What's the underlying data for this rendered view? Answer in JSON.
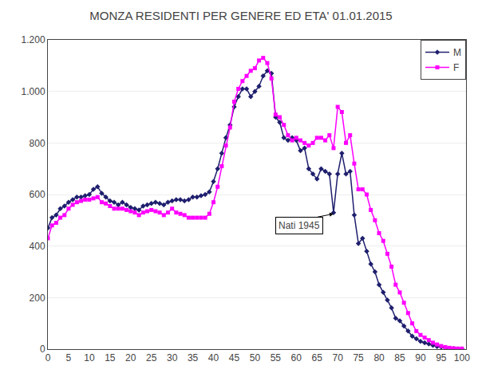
{
  "chart_data": {
    "type": "line",
    "title": "MONZA RESIDENTI PER GENERE ED ETA' 01.01.2015",
    "x": [
      0,
      1,
      2,
      3,
      4,
      5,
      6,
      7,
      8,
      9,
      10,
      11,
      12,
      13,
      14,
      15,
      16,
      17,
      18,
      19,
      20,
      21,
      22,
      23,
      24,
      25,
      26,
      27,
      28,
      29,
      30,
      31,
      32,
      33,
      34,
      35,
      36,
      37,
      38,
      39,
      40,
      41,
      42,
      43,
      44,
      45,
      46,
      47,
      48,
      49,
      50,
      51,
      52,
      53,
      54,
      55,
      56,
      57,
      58,
      59,
      60,
      61,
      62,
      63,
      64,
      65,
      66,
      67,
      68,
      69,
      70,
      71,
      72,
      73,
      74,
      75,
      76,
      77,
      78,
      79,
      80,
      81,
      82,
      83,
      84,
      85,
      86,
      87,
      88,
      89,
      90,
      91,
      92,
      93,
      94,
      95,
      96,
      97,
      98,
      99,
      100
    ],
    "series": [
      {
        "name": "M",
        "color": "#1f1f6e",
        "marker": "diamond",
        "values": [
          470,
          510,
          520,
          545,
          555,
          570,
          580,
          590,
          590,
          595,
          600,
          620,
          630,
          605,
          590,
          575,
          570,
          560,
          570,
          560,
          550,
          545,
          540,
          555,
          560,
          565,
          570,
          565,
          560,
          570,
          575,
          580,
          580,
          575,
          580,
          590,
          590,
          595,
          600,
          610,
          650,
          700,
          760,
          820,
          870,
          940,
          980,
          1010,
          1010,
          980,
          1000,
          1020,
          1060,
          1080,
          1070,
          900,
          880,
          820,
          810,
          820,
          810,
          770,
          780,
          700,
          680,
          660,
          700,
          690,
          680,
          530,
          680,
          760,
          680,
          690,
          520,
          410,
          430,
          380,
          330,
          300,
          250,
          220,
          190,
          160,
          120,
          110,
          90,
          70,
          50,
          40,
          30,
          25,
          20,
          15,
          10,
          8,
          5,
          3,
          2,
          1,
          1
        ]
      },
      {
        "name": "F",
        "color": "#ff00ff",
        "marker": "square",
        "values": [
          430,
          480,
          490,
          510,
          520,
          545,
          560,
          570,
          575,
          580,
          580,
          585,
          590,
          570,
          565,
          555,
          545,
          545,
          545,
          540,
          535,
          530,
          520,
          530,
          535,
          540,
          535,
          530,
          520,
          530,
          545,
          530,
          525,
          520,
          510,
          510,
          510,
          510,
          510,
          525,
          570,
          630,
          710,
          790,
          860,
          960,
          1010,
          1040,
          1060,
          1080,
          1090,
          1120,
          1130,
          1110,
          1050,
          910,
          900,
          870,
          830,
          810,
          820,
          810,
          800,
          790,
          800,
          820,
          820,
          810,
          830,
          780,
          940,
          920,
          800,
          830,
          720,
          620,
          620,
          600,
          540,
          500,
          450,
          420,
          370,
          320,
          250,
          220,
          180,
          140,
          100,
          70,
          55,
          45,
          35,
          25,
          18,
          12,
          8,
          5,
          3,
          2,
          2
        ]
      }
    ],
    "xlim": [
      0,
      101
    ],
    "xticks": [
      0,
      5,
      10,
      15,
      20,
      25,
      30,
      35,
      40,
      45,
      50,
      55,
      60,
      65,
      70,
      75,
      80,
      85,
      90,
      95,
      100
    ],
    "ylim": [
      0,
      1200
    ],
    "yticks": [
      0,
      200,
      400,
      600,
      800,
      {
        "value": 1000,
        "label": "1.000"
      },
      {
        "value": 1200,
        "label": "1.200"
      }
    ],
    "grid": "y",
    "legend": "upper right",
    "annotations": [
      {
        "text": "Nati 1945",
        "x": 69,
        "y": 525,
        "text_x": 55,
        "text_y": 480
      }
    ]
  }
}
